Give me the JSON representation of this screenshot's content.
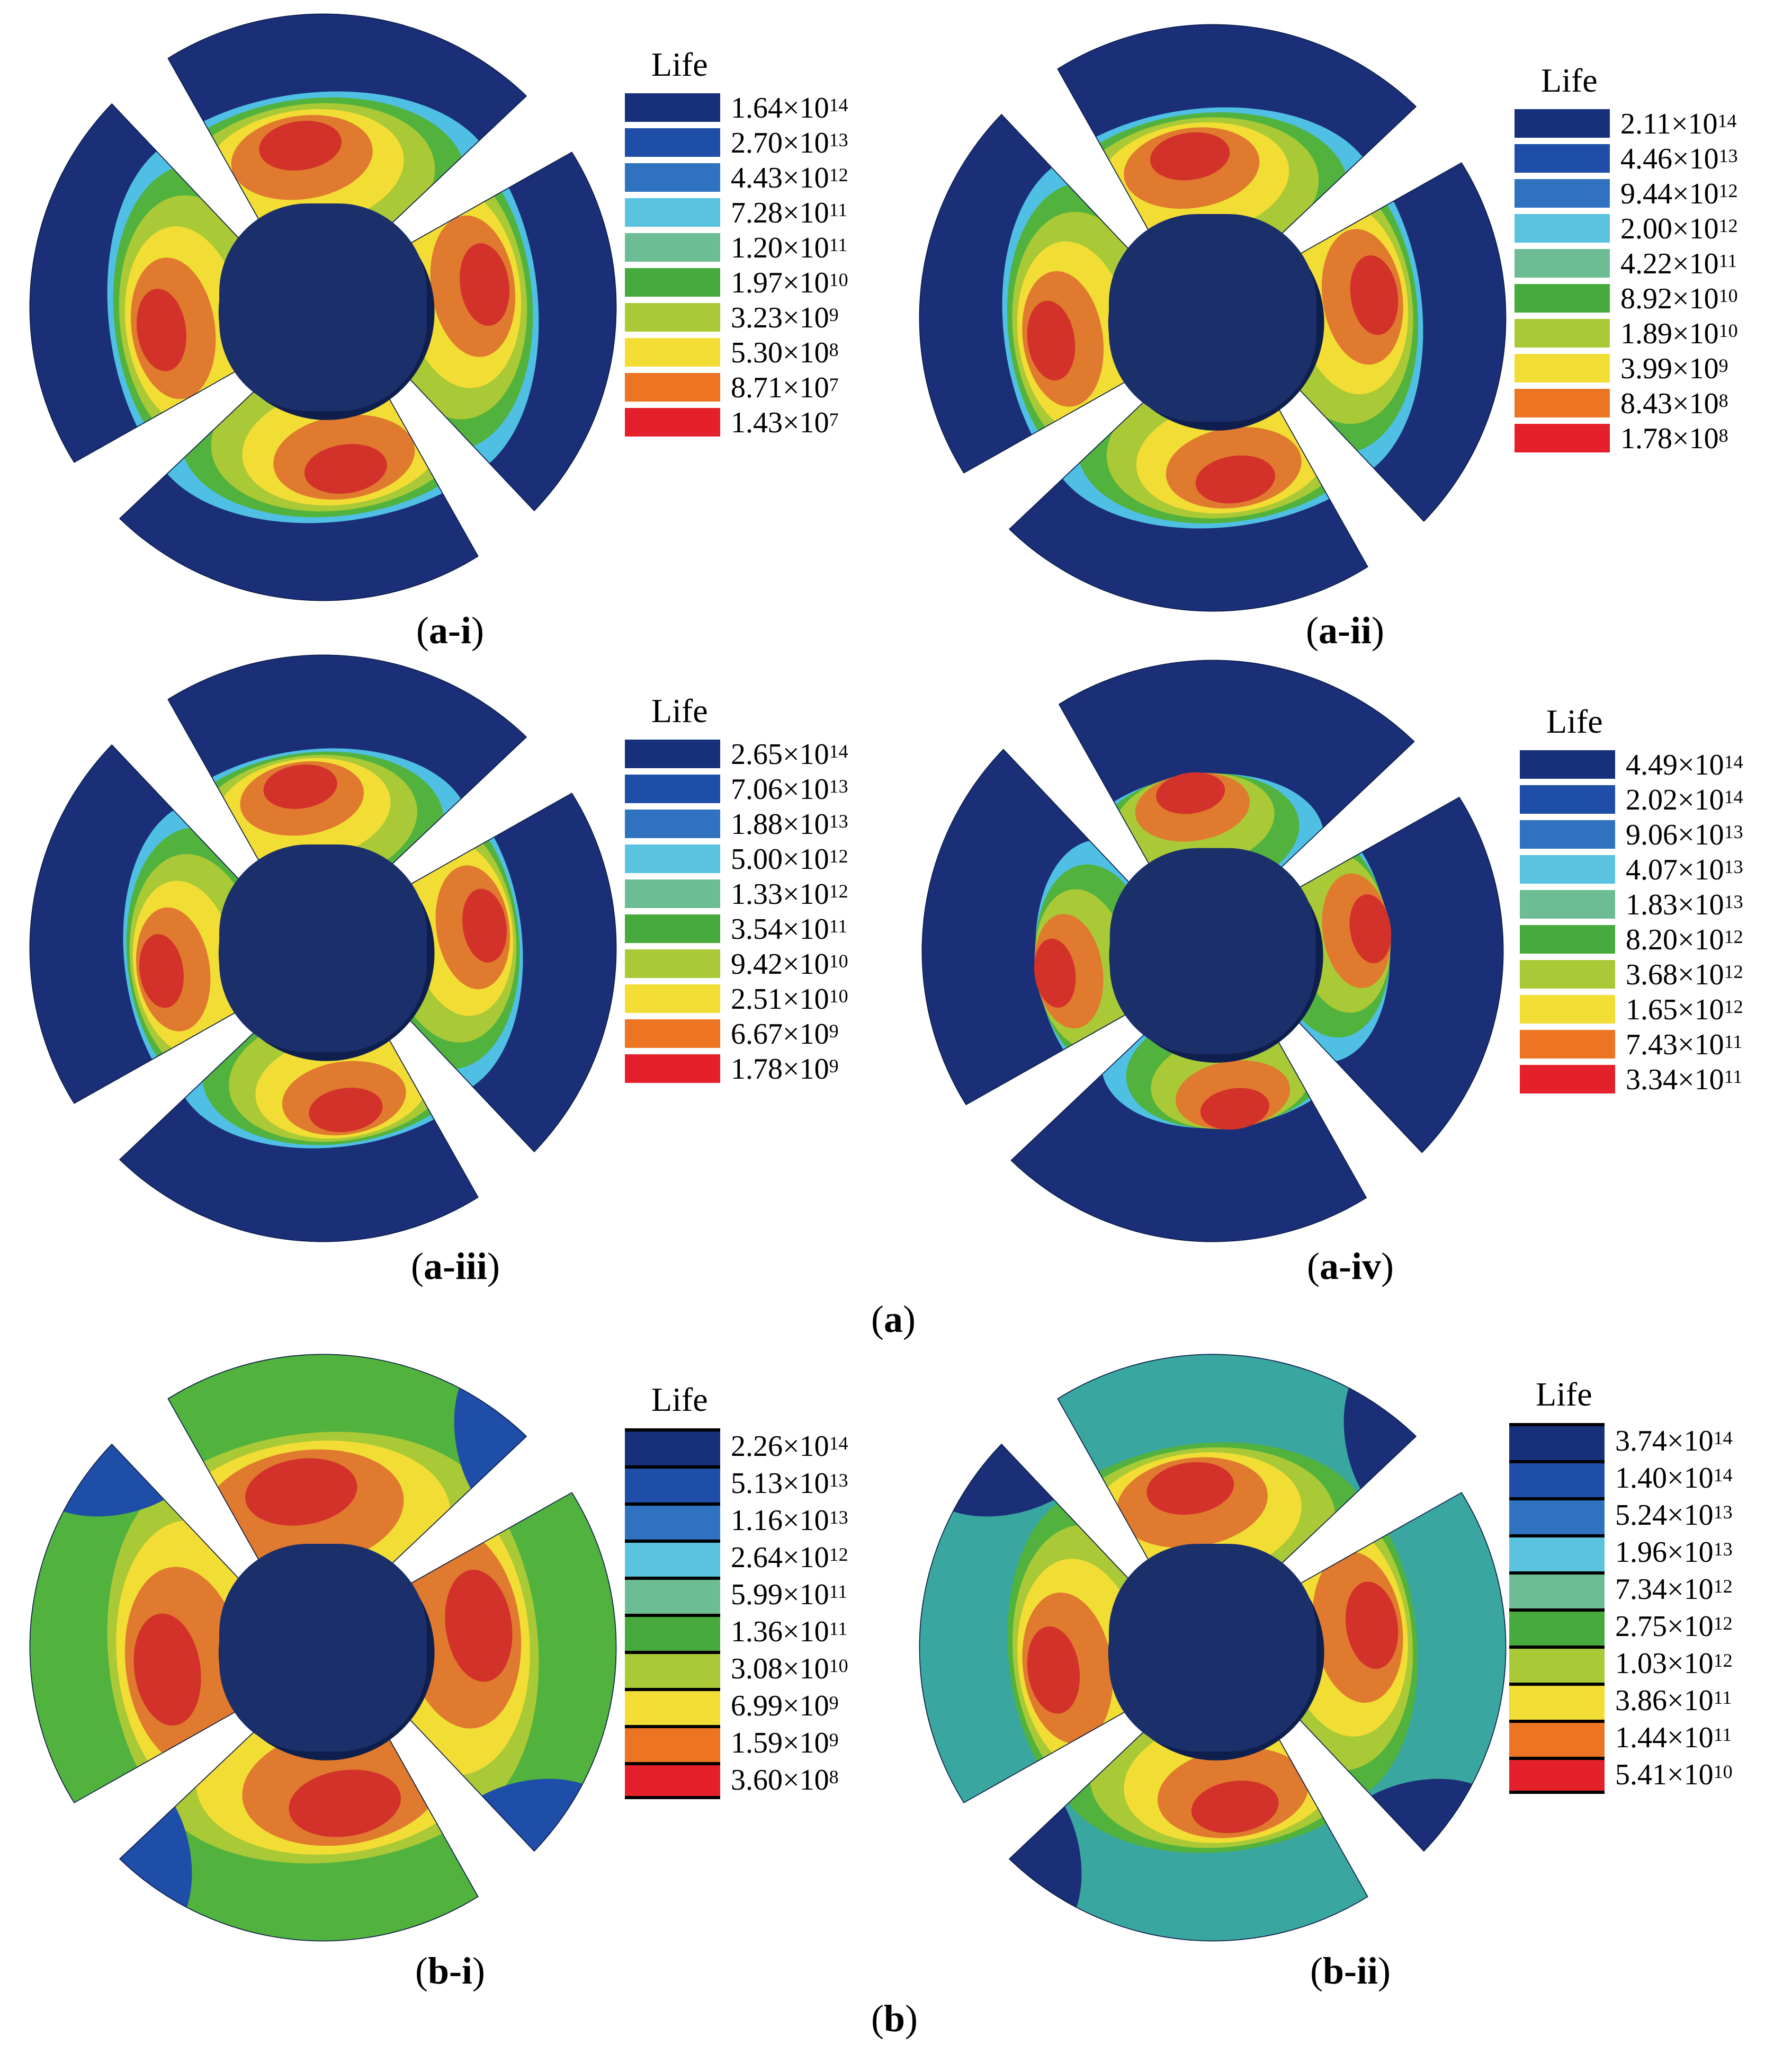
{
  "legend_title": "Life",
  "panels": [
    {
      "id": "a-i",
      "caption": "a-i",
      "scheme": "a1",
      "legend": [
        {
          "m": "1.64",
          "e": "14",
          "color": "#16307a"
        },
        {
          "m": "2.70",
          "e": "13",
          "color": "#1f4ea8"
        },
        {
          "m": "4.43",
          "e": "12",
          "color": "#2f73c0"
        },
        {
          "m": "7.28",
          "e": "11",
          "color": "#5ac3e0"
        },
        {
          "m": "1.20",
          "e": "11",
          "color": "#6dbd94"
        },
        {
          "m": "1.97",
          "e": "10",
          "color": "#46ab3c"
        },
        {
          "m": "3.23",
          "e": "9",
          "color": "#a9c936"
        },
        {
          "m": "5.30",
          "e": "8",
          "color": "#f2dd35"
        },
        {
          "m": "8.71",
          "e": "7",
          "color": "#ec7422"
        },
        {
          "m": "1.43",
          "e": "7",
          "color": "#e4202a"
        }
      ]
    },
    {
      "id": "a-ii",
      "caption": "a-ii",
      "scheme": "a2",
      "legend": [
        {
          "m": "2.11",
          "e": "14",
          "color": "#16307a"
        },
        {
          "m": "4.46",
          "e": "13",
          "color": "#1f4ea8"
        },
        {
          "m": "9.44",
          "e": "12",
          "color": "#2f73c0"
        },
        {
          "m": "2.00",
          "e": "12",
          "color": "#5ac3e0"
        },
        {
          "m": "4.22",
          "e": "11",
          "color": "#6dbd94"
        },
        {
          "m": "8.92",
          "e": "10",
          "color": "#46ab3c"
        },
        {
          "m": "1.89",
          "e": "10",
          "color": "#a9c936"
        },
        {
          "m": "3.99",
          "e": "9",
          "color": "#f2dd35"
        },
        {
          "m": "8.43",
          "e": "8",
          "color": "#ec7422"
        },
        {
          "m": "1.78",
          "e": "8",
          "color": "#e4202a"
        }
      ]
    },
    {
      "id": "a-iii",
      "caption": "a-iii",
      "scheme": "a3",
      "legend": [
        {
          "m": "2.65",
          "e": "14",
          "color": "#16307a"
        },
        {
          "m": "7.06",
          "e": "13",
          "color": "#1f4ea8"
        },
        {
          "m": "1.88",
          "e": "13",
          "color": "#2f73c0"
        },
        {
          "m": "5.00",
          "e": "12",
          "color": "#5ac3e0"
        },
        {
          "m": "1.33",
          "e": "12",
          "color": "#6dbd94"
        },
        {
          "m": "3.54",
          "e": "11",
          "color": "#46ab3c"
        },
        {
          "m": "9.42",
          "e": "10",
          "color": "#a9c936"
        },
        {
          "m": "2.51",
          "e": "10",
          "color": "#f2dd35"
        },
        {
          "m": "6.67",
          "e": "9",
          "color": "#ec7422"
        },
        {
          "m": "1.78",
          "e": "9",
          "color": "#e4202a"
        }
      ]
    },
    {
      "id": "a-iv",
      "caption": "a-iv",
      "scheme": "a4",
      "legend": [
        {
          "m": "4.49",
          "e": "14",
          "color": "#16307a"
        },
        {
          "m": "2.02",
          "e": "14",
          "color": "#1f4ea8"
        },
        {
          "m": "9.06",
          "e": "13",
          "color": "#2f73c0"
        },
        {
          "m": "4.07",
          "e": "13",
          "color": "#5ac3e0"
        },
        {
          "m": "1.83",
          "e": "13",
          "color": "#6dbd94"
        },
        {
          "m": "8.20",
          "e": "12",
          "color": "#46ab3c"
        },
        {
          "m": "3.68",
          "e": "12",
          "color": "#a9c936"
        },
        {
          "m": "1.65",
          "e": "12",
          "color": "#f2dd35"
        },
        {
          "m": "7.43",
          "e": "11",
          "color": "#ec7422"
        },
        {
          "m": "3.34",
          "e": "11",
          "color": "#e4202a"
        }
      ]
    },
    {
      "id": "b-i",
      "caption": "b-i",
      "scheme": "b1",
      "legend": [
        {
          "m": "2.26",
          "e": "14",
          "color": "#16307a"
        },
        {
          "m": "5.13",
          "e": "13",
          "color": "#1f4ea8"
        },
        {
          "m": "1.16",
          "e": "13",
          "color": "#2f73c0"
        },
        {
          "m": "2.64",
          "e": "12",
          "color": "#5ac3e0"
        },
        {
          "m": "5.99",
          "e": "11",
          "color": "#6dbd94"
        },
        {
          "m": "1.36",
          "e": "11",
          "color": "#46ab3c"
        },
        {
          "m": "3.08",
          "e": "10",
          "color": "#a9c936"
        },
        {
          "m": "6.99",
          "e": "9",
          "color": "#f2dd35"
        },
        {
          "m": "1.59",
          "e": "9",
          "color": "#ec7422"
        },
        {
          "m": "3.60",
          "e": "8",
          "color": "#e4202a"
        }
      ]
    },
    {
      "id": "b-ii",
      "caption": "b-ii",
      "scheme": "b2",
      "legend": [
        {
          "m": "3.74",
          "e": "14",
          "color": "#16307a"
        },
        {
          "m": "1.40",
          "e": "14",
          "color": "#1f4ea8"
        },
        {
          "m": "5.24",
          "e": "13",
          "color": "#2f73c0"
        },
        {
          "m": "1.96",
          "e": "13",
          "color": "#5ac3e0"
        },
        {
          "m": "7.34",
          "e": "12",
          "color": "#6dbd94"
        },
        {
          "m": "2.75",
          "e": "12",
          "color": "#46ab3c"
        },
        {
          "m": "1.03",
          "e": "12",
          "color": "#a9c936"
        },
        {
          "m": "3.86",
          "e": "11",
          "color": "#f2dd35"
        },
        {
          "m": "1.44",
          "e": "11",
          "color": "#ec7422"
        },
        {
          "m": "5.41",
          "e": "10",
          "color": "#e4202a"
        }
      ]
    }
  ],
  "group_captions": [
    {
      "id": "a",
      "label": "a"
    },
    {
      "id": "b",
      "label": "b"
    }
  ],
  "colors": {
    "hub": "#1b2f6b",
    "hub_edge": "#0f1f4d",
    "blue_dark": "#1a2f78",
    "blue": "#1f4ea8",
    "cyan": "#4fc0e4",
    "teal": "#3aa6a0",
    "green": "#52b23e",
    "yellowgreen": "#a9c936",
    "yellow": "#f2dd35",
    "orange": "#e07a2e",
    "red": "#d2322a",
    "brownred": "#b94b2c"
  }
}
